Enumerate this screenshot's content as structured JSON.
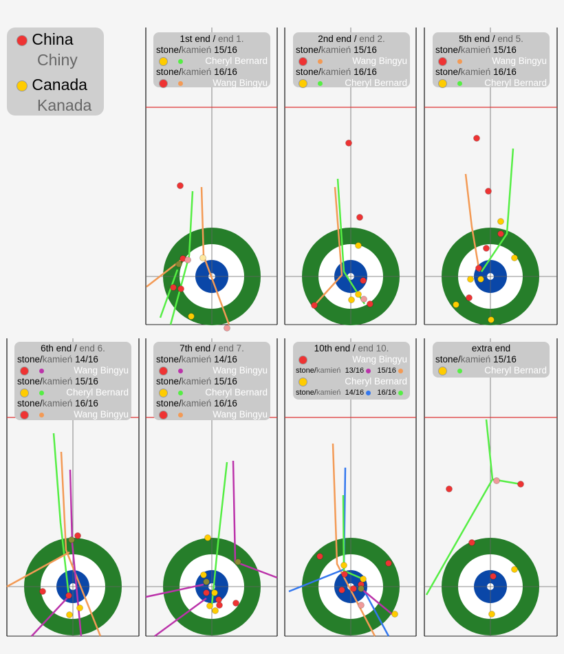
{
  "key": {
    "items": [
      {
        "en": "China",
        "pl": "Chiny",
        "color": "#ee3333"
      },
      {
        "en": "Canada",
        "pl": "Kanada",
        "color": "#ffcc00"
      }
    ]
  },
  "stone_word": "stone/",
  "stone_word_pl": "kamień",
  "colors": {
    "green": "#267e2a",
    "blue": "#0a47a8",
    "hog": "#dd3333",
    "p_green": "#55ee44",
    "p_orange": "#f39a55",
    "p_purple": "#bb33aa",
    "p_blue": "#3377ee"
  },
  "ends": [
    {
      "title": "1st end / ",
      "title_pl": "end 1.",
      "shots": [
        {
          "num": "15/16",
          "stone": "yellow",
          "path": "green",
          "player": "Cheryl Bernard"
        },
        {
          "num": "16/16",
          "stone": "red",
          "path": "orange",
          "player": "Wang Bingyu"
        }
      ]
    },
    {
      "title": "2nd end / ",
      "title_pl": "end 2.",
      "shots": [
        {
          "num": "15/16",
          "stone": "red",
          "path": "orange",
          "player": "Wang Bingyu"
        },
        {
          "num": "16/16",
          "stone": "yellow",
          "path": "green",
          "player": "Cheryl Bernard"
        }
      ]
    },
    {
      "title": "5th end / ",
      "title_pl": "end 5.",
      "shots": [
        {
          "num": "15/16",
          "stone": "red",
          "path": "orange",
          "player": "Wang Bingyu"
        },
        {
          "num": "16/16",
          "stone": "yellow",
          "path": "green",
          "player": "Cheryl Bernard"
        }
      ]
    },
    {
      "title": "6th end / ",
      "title_pl": "end 6.",
      "shots": [
        {
          "num": "14/16",
          "stone": "red",
          "path": "purple",
          "player": "Wang Bingyu"
        },
        {
          "num": "15/16",
          "stone": "yellow",
          "path": "green",
          "player": "Cheryl Bernard"
        },
        {
          "num": "16/16",
          "stone": "red",
          "path": "orange",
          "player": "Wang Bingyu"
        }
      ]
    },
    {
      "title": "7th end / ",
      "title_pl": "end 7.",
      "shots": [
        {
          "num": "14/16",
          "stone": "red",
          "path": "purple",
          "player": "Wang Bingyu"
        },
        {
          "num": "15/16",
          "stone": "yellow",
          "path": "green",
          "player": "Cheryl Bernard"
        },
        {
          "num": "16/16",
          "stone": "red",
          "path": "orange",
          "player": "Wang Bingyu"
        }
      ]
    },
    {
      "title": "10th end / ",
      "title_pl": "end 10.",
      "compact": true,
      "players": [
        {
          "stone": "red",
          "player": "Wang Bingyu",
          "shots": [
            {
              "num": "13/16",
              "path": "purple"
            },
            {
              "num": "15/16",
              "path": "orange"
            }
          ]
        },
        {
          "stone": "yellow",
          "player": "Cheryl Bernard",
          "shots": [
            {
              "num": "14/16",
              "path": "blue"
            },
            {
              "num": "16/16",
              "path": "green"
            }
          ]
        }
      ]
    },
    {
      "title": "extra end",
      "title_pl": "",
      "shots": [
        {
          "num": "15/16",
          "stone": "yellow",
          "path": "green",
          "player": "Cheryl Bernard"
        }
      ]
    }
  ]
}
